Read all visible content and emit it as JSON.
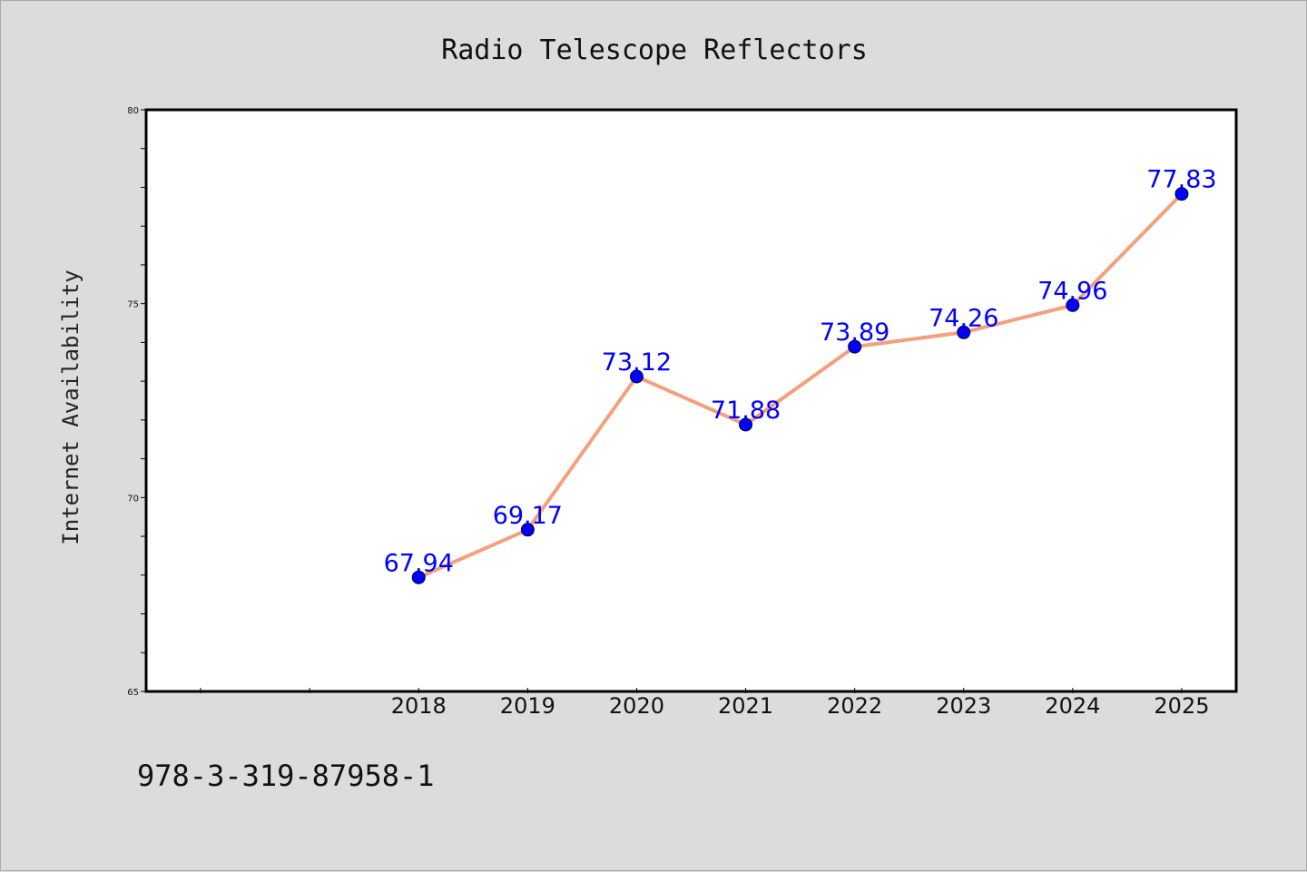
{
  "chart_data": {
    "type": "line",
    "title": "Radio Telescope Reflectors",
    "xlabel": "",
    "ylabel": "Internet Availability",
    "categories": [
      "2018",
      "2019",
      "2020",
      "2021",
      "2022",
      "2023",
      "2024",
      "2025"
    ],
    "series": [
      {
        "values": [
          67.94,
          69.17,
          73.12,
          71.88,
          73.89,
          74.26,
          74.96,
          77.83
        ],
        "data_labels": [
          "67.94",
          "69.17",
          "73.12",
          "71.88",
          "73.89",
          "74.26",
          "74.96",
          "77.83"
        ]
      }
    ],
    "ylim": [
      65,
      80
    ],
    "yticks": [
      "65",
      "70",
      "75",
      "80"
    ],
    "grid": false,
    "legend": "none",
    "line_color": "#f4a07a",
    "marker_color": "#0000ff",
    "label_color": "#0000ff",
    "background_color": "#dcdcdc",
    "plot_background": "#ffffff"
  },
  "footer": {
    "isbn": "978-3-319-87958-1"
  }
}
